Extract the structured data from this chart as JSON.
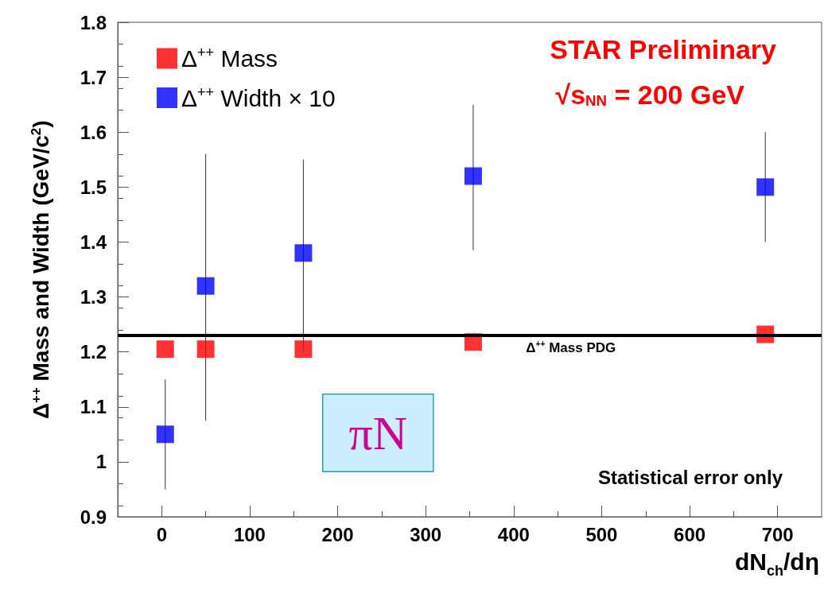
{
  "chart_data": {
    "type": "scatter",
    "xlabel": "dN$_{ch}$/dη",
    "ylabel": "Δ$^{++}$ Mass and Width (GeV/c$^{2}$)",
    "xlim": [
      -50,
      750
    ],
    "xticks": [
      0,
      100,
      200,
      300,
      400,
      500,
      600,
      700
    ],
    "ylim": [
      0.9,
      1.8
    ],
    "yticks": [
      0.9,
      1,
      1.1,
      1.2,
      1.3,
      1.4,
      1.5,
      1.6,
      1.7,
      1.8
    ],
    "series": [
      {
        "name": "Δ$^{++}$ Mass",
        "color": "#ff0000",
        "x": [
          4,
          50,
          161,
          354,
          686
        ],
        "values": [
          1.205,
          1.205,
          1.205,
          1.218,
          1.232
        ]
      },
      {
        "name": "Δ$^{++}$ Width × 10",
        "color": "#0000ff",
        "x": [
          4,
          50,
          161,
          354,
          686
        ],
        "values": [
          1.05,
          1.32,
          1.38,
          1.52,
          1.5
        ],
        "errors": [
          [
            0.95,
            1.15
          ],
          [
            1.075,
            1.56
          ],
          [
            1.2,
            1.55
          ],
          [
            1.385,
            1.65
          ],
          [
            1.4,
            1.6
          ]
        ]
      }
    ],
    "ref_lines": [
      {
        "axis": "y",
        "value": 1.232,
        "label": "Δ$^{++}$ Mass PDG",
        "color": "#000000"
      }
    ],
    "annotations": [
      "STAR Preliminary",
      "√s$_{NN}$ = 200 GeV",
      "πN",
      "Statistical error only"
    ],
    "marker": "square",
    "legend": "top left",
    "grid": false
  }
}
